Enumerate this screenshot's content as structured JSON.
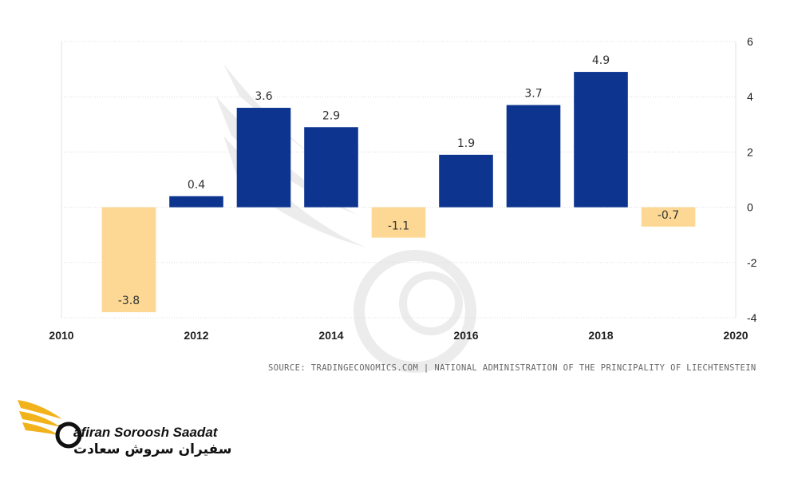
{
  "chart_data": {
    "type": "bar",
    "x": [
      2011,
      2012,
      2013,
      2014,
      2015,
      2016,
      2017,
      2018,
      2019
    ],
    "values": [
      -3.8,
      0.4,
      3.6,
      2.9,
      -1.1,
      1.9,
      3.7,
      4.9,
      -0.7
    ],
    "data_labels": [
      "-3.8",
      "0.4",
      "3.6",
      "2.9",
      "-1.1",
      "1.9",
      "3.7",
      "4.9",
      "-0.7"
    ],
    "xticks": [
      "2010",
      "2012",
      "2014",
      "2016",
      "2018",
      "2020"
    ],
    "xlim": [
      2010,
      2020
    ],
    "yticks": [
      "6",
      "4",
      "2",
      "0",
      "-2",
      "-4"
    ],
    "ylim": [
      -4,
      6
    ],
    "grid": true,
    "y_axis_side": "right",
    "title": "",
    "xlabel": "",
    "ylabel": "",
    "colors": {
      "positive": "#0d3590",
      "negative": "#fcd894"
    }
  },
  "source": "SOURCE: TRADINGECONOMICS.COM | NATIONAL ADMINISTRATION OF THE PRINCIPALITY OF LIECHTENSTEIN",
  "logo": {
    "name_en": "afiran Soroosh Saadat",
    "name_fa": "سفیران سروش سعادت"
  }
}
